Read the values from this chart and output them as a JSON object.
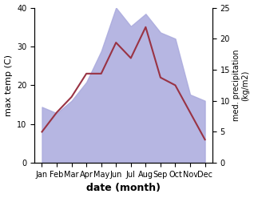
{
  "months": [
    "Jan",
    "Feb",
    "Mar",
    "Apr",
    "May",
    "Jun",
    "Jul",
    "Aug",
    "Sep",
    "Oct",
    "Nov",
    "Dec"
  ],
  "temperature": [
    8,
    13,
    17,
    23,
    23,
    31,
    27,
    35,
    22,
    20,
    13,
    6
  ],
  "precipitation": [
    9,
    8,
    10,
    13,
    18,
    25,
    22,
    24,
    21,
    20,
    11,
    10
  ],
  "temp_color": "#993344",
  "precip_color_fill": "#aaaadd",
  "title": "",
  "xlabel": "date (month)",
  "ylabel_left": "max temp (C)",
  "ylabel_right": "med. precipitation\n(kg/m2)",
  "ylim_left": [
    0,
    40
  ],
  "ylim_right": [
    0,
    25
  ],
  "yticks_left": [
    0,
    10,
    20,
    30,
    40
  ],
  "yticks_right": [
    0,
    5,
    10,
    15,
    20,
    25
  ],
  "background_color": "#ffffff"
}
